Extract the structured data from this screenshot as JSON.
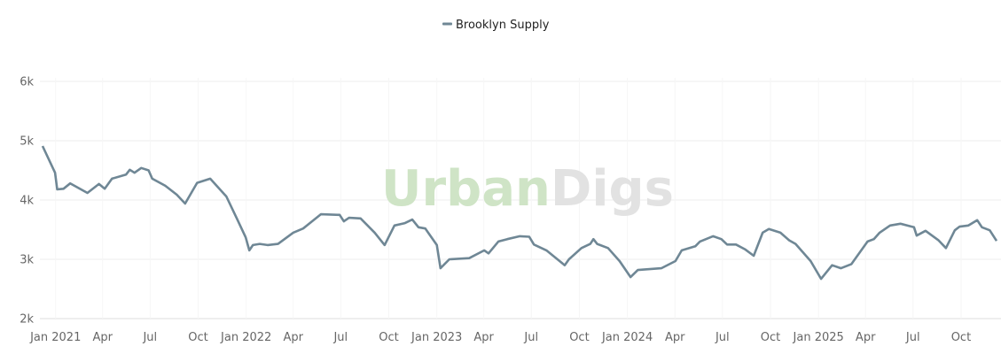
{
  "chart_data": {
    "type": "line",
    "title": "",
    "xlabel": "",
    "ylabel": "",
    "legend": {
      "placement": "top-center",
      "entries": [
        "Brooklyn Supply"
      ]
    },
    "watermark": {
      "part1": "Urban",
      "part2": "Digs",
      "color1": "#cfe4c6",
      "color2": "#e2e2e2"
    },
    "grid": true,
    "ylim": [
      2000,
      6000
    ],
    "xlim": [
      "2020-12-07",
      "2025-12-08"
    ],
    "y_ticks": [
      {
        "v": 2000,
        "label": "2k"
      },
      {
        "v": 3000,
        "label": "3k"
      },
      {
        "v": 4000,
        "label": "4k"
      },
      {
        "v": 5000,
        "label": "5k"
      },
      {
        "v": 6000,
        "label": "6k"
      }
    ],
    "x_ticks": [
      {
        "d": "2021-01-01",
        "label": "Jan 2021"
      },
      {
        "d": "2021-04-01",
        "label": "Apr"
      },
      {
        "d": "2021-07-01",
        "label": "Jul"
      },
      {
        "d": "2021-10-01",
        "label": "Oct"
      },
      {
        "d": "2022-01-01",
        "label": "Jan 2022"
      },
      {
        "d": "2022-04-01",
        "label": "Apr"
      },
      {
        "d": "2022-07-01",
        "label": "Jul"
      },
      {
        "d": "2022-10-01",
        "label": "Oct"
      },
      {
        "d": "2023-01-01",
        "label": "Jan 2023"
      },
      {
        "d": "2023-04-01",
        "label": "Apr"
      },
      {
        "d": "2023-07-01",
        "label": "Jul"
      },
      {
        "d": "2023-10-01",
        "label": "Oct"
      },
      {
        "d": "2024-01-01",
        "label": "Jan 2024"
      },
      {
        "d": "2024-04-01",
        "label": "Apr"
      },
      {
        "d": "2024-07-01",
        "label": "Jul"
      },
      {
        "d": "2024-10-01",
        "label": "Oct"
      },
      {
        "d": "2025-01-01",
        "label": "Jan 2025"
      },
      {
        "d": "2025-04-01",
        "label": "Apr"
      },
      {
        "d": "2025-07-01",
        "label": "Jul"
      },
      {
        "d": "2025-10-01",
        "label": "Oct"
      }
    ],
    "series": [
      {
        "name": "Brooklyn Supply",
        "color": "#6f8795",
        "points": [
          [
            "2020-12-07",
            4910
          ],
          [
            "2020-12-31",
            4460
          ],
          [
            "2021-01-04",
            4180
          ],
          [
            "2021-01-16",
            4190
          ],
          [
            "2021-01-29",
            4280
          ],
          [
            "2021-03-03",
            4120
          ],
          [
            "2021-03-25",
            4270
          ],
          [
            "2021-04-05",
            4190
          ],
          [
            "2021-04-19",
            4360
          ],
          [
            "2021-05-16",
            4430
          ],
          [
            "2021-05-23",
            4510
          ],
          [
            "2021-06-01",
            4460
          ],
          [
            "2021-06-14",
            4540
          ],
          [
            "2021-06-28",
            4500
          ],
          [
            "2021-07-05",
            4360
          ],
          [
            "2021-07-30",
            4240
          ],
          [
            "2021-08-21",
            4090
          ],
          [
            "2021-09-06",
            3940
          ],
          [
            "2021-09-29",
            4290
          ],
          [
            "2021-10-24",
            4360
          ],
          [
            "2021-11-24",
            4060
          ],
          [
            "2021-12-14",
            3690
          ],
          [
            "2021-12-31",
            3370
          ],
          [
            "2022-01-07",
            3150
          ],
          [
            "2022-01-14",
            3240
          ],
          [
            "2022-01-27",
            3260
          ],
          [
            "2022-02-11",
            3240
          ],
          [
            "2022-03-03",
            3260
          ],
          [
            "2022-04-01",
            3450
          ],
          [
            "2022-04-20",
            3520
          ],
          [
            "2022-05-24",
            3760
          ],
          [
            "2022-06-29",
            3750
          ],
          [
            "2022-07-07",
            3640
          ],
          [
            "2022-07-17",
            3700
          ],
          [
            "2022-08-08",
            3690
          ],
          [
            "2022-09-04",
            3450
          ],
          [
            "2022-09-23",
            3240
          ],
          [
            "2022-10-12",
            3570
          ],
          [
            "2022-11-01",
            3610
          ],
          [
            "2022-11-15",
            3670
          ],
          [
            "2022-11-27",
            3540
          ],
          [
            "2022-12-10",
            3520
          ],
          [
            "2023-01-01",
            3240
          ],
          [
            "2023-01-08",
            2850
          ],
          [
            "2023-01-25",
            3000
          ],
          [
            "2023-03-04",
            3020
          ],
          [
            "2023-04-02",
            3150
          ],
          [
            "2023-04-10",
            3100
          ],
          [
            "2023-04-29",
            3300
          ],
          [
            "2023-05-16",
            3340
          ],
          [
            "2023-06-09",
            3390
          ],
          [
            "2023-06-27",
            3380
          ],
          [
            "2023-07-06",
            3250
          ],
          [
            "2023-07-30",
            3150
          ],
          [
            "2023-09-03",
            2900
          ],
          [
            "2023-09-11",
            3000
          ],
          [
            "2023-10-05",
            3190
          ],
          [
            "2023-10-22",
            3260
          ],
          [
            "2023-10-28",
            3340
          ],
          [
            "2023-11-04",
            3260
          ],
          [
            "2023-11-25",
            3190
          ],
          [
            "2023-12-17",
            2970
          ],
          [
            "2024-01-07",
            2700
          ],
          [
            "2024-01-21",
            2820
          ],
          [
            "2024-03-06",
            2850
          ],
          [
            "2024-04-02",
            2970
          ],
          [
            "2024-04-14",
            3150
          ],
          [
            "2024-05-10",
            3220
          ],
          [
            "2024-05-19",
            3300
          ],
          [
            "2024-06-13",
            3390
          ],
          [
            "2024-06-29",
            3340
          ],
          [
            "2024-07-10",
            3250
          ],
          [
            "2024-07-27",
            3250
          ],
          [
            "2024-08-13",
            3170
          ],
          [
            "2024-08-30",
            3060
          ],
          [
            "2024-09-16",
            3450
          ],
          [
            "2024-09-28",
            3510
          ],
          [
            "2024-10-20",
            3450
          ],
          [
            "2024-11-06",
            3320
          ],
          [
            "2024-11-18",
            3260
          ],
          [
            "2024-12-17",
            2970
          ],
          [
            "2025-01-06",
            2670
          ],
          [
            "2025-01-27",
            2900
          ],
          [
            "2025-02-13",
            2850
          ],
          [
            "2025-03-05",
            2920
          ],
          [
            "2025-04-05",
            3300
          ],
          [
            "2025-04-17",
            3340
          ],
          [
            "2025-04-28",
            3450
          ],
          [
            "2025-05-18",
            3570
          ],
          [
            "2025-06-07",
            3600
          ],
          [
            "2025-07-03",
            3540
          ],
          [
            "2025-07-08",
            3400
          ],
          [
            "2025-07-25",
            3480
          ],
          [
            "2025-08-19",
            3320
          ],
          [
            "2025-09-02",
            3190
          ],
          [
            "2025-09-19",
            3490
          ],
          [
            "2025-09-28",
            3550
          ],
          [
            "2025-10-15",
            3570
          ],
          [
            "2025-11-01",
            3660
          ],
          [
            "2025-11-10",
            3540
          ],
          [
            "2025-11-25",
            3490
          ],
          [
            "2025-12-08",
            3310
          ]
        ]
      }
    ]
  }
}
